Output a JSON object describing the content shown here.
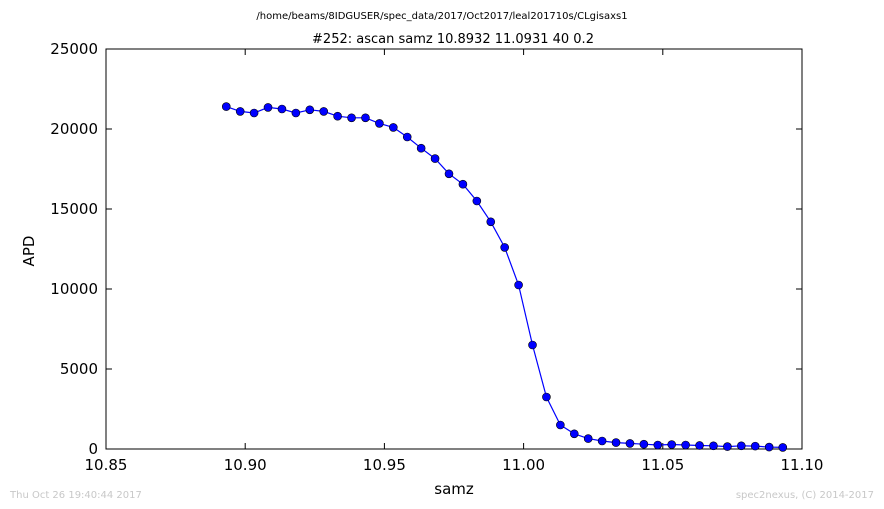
{
  "header": {
    "path": "/home/beams/8IDGUSER/spec_data/2017/Oct2017/leal201710s/CLgisaxs1",
    "title": "#252: ascan  samz 10.8932 11.0931  40 0.2"
  },
  "footer": {
    "timestamp": "Thu Oct 26 19:40:44 2017",
    "credit": "spec2nexus, (C) 2014-2017"
  },
  "chart_data": {
    "type": "line",
    "xlabel": "samz",
    "ylabel": "APD",
    "xlim": [
      10.85,
      11.1
    ],
    "ylim": [
      0,
      25000
    ],
    "x_ticks": [
      "10.85",
      "10.90",
      "10.95",
      "11.00",
      "11.05",
      "11.10"
    ],
    "y_ticks": [
      "0",
      "5000",
      "10000",
      "15000",
      "20000",
      "25000"
    ],
    "grid": false,
    "series_color": "#0000ff",
    "x": [
      10.8932,
      10.8982,
      10.9032,
      10.9082,
      10.9132,
      10.9182,
      10.9232,
      10.9282,
      10.9332,
      10.9382,
      10.9432,
      10.9482,
      10.9532,
      10.9582,
      10.9632,
      10.9682,
      10.9732,
      10.9782,
      10.9832,
      10.9882,
      10.9932,
      10.9982,
      11.0032,
      11.0082,
      11.0132,
      11.0182,
      11.0232,
      11.0282,
      11.0332,
      11.0382,
      11.0432,
      11.0482,
      11.0532,
      11.0582,
      11.0632,
      11.0682,
      11.0732,
      11.0782,
      11.0832,
      11.0882,
      11.0931
    ],
    "y": [
      21400,
      21100,
      21000,
      21350,
      21250,
      21000,
      21200,
      21100,
      20800,
      20700,
      20700,
      20350,
      20100,
      19500,
      18800,
      18150,
      17200,
      16550,
      15500,
      14200,
      12600,
      10250,
      6500,
      3250,
      1500,
      950,
      650,
      500,
      400,
      350,
      300,
      250,
      280,
      250,
      220,
      200,
      150,
      200,
      180,
      120,
      100
    ]
  }
}
